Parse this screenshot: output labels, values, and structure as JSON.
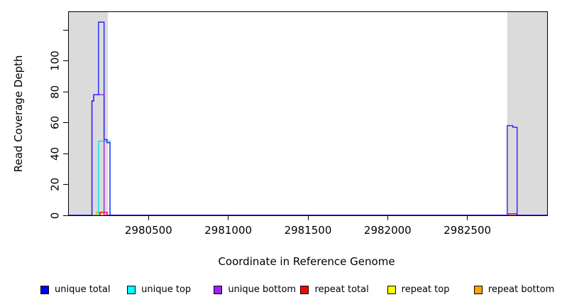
{
  "figure": {
    "x_axis_title": "Coordinate in Reference Genome",
    "y_axis_title": "Read Coverage Depth"
  },
  "legend": {
    "items": [
      {
        "label": "unique total",
        "color": "#0000FF"
      },
      {
        "label": "unique top",
        "color": "#00FFFF"
      },
      {
        "label": "unique bottom",
        "color": "#A020F0"
      },
      {
        "label": "repeat total",
        "color": "#FF0000"
      },
      {
        "label": "repeat top",
        "color": "#FFFF00"
      },
      {
        "label": "repeat bottom",
        "color": "#FFA500"
      }
    ]
  },
  "chart_data": {
    "type": "line",
    "subtype": "step",
    "title": "",
    "xlabel": "Coordinate in Reference Genome",
    "ylabel": "Read Coverage Depth",
    "xlim": [
      2980000,
      2983000
    ],
    "ylim": [
      0,
      131.5
    ],
    "grid": false,
    "legend_position": "bottom",
    "x_ticks": [
      {
        "value": 2980500,
        "label": "2980500"
      },
      {
        "value": 2981000,
        "label": "2981000"
      },
      {
        "value": 2981500,
        "label": "2981500"
      },
      {
        "value": 2982000,
        "label": "2982000"
      },
      {
        "value": 2982500,
        "label": "2982500"
      }
    ],
    "y_ticks": [
      {
        "value": 0,
        "label": "0"
      },
      {
        "value": 20,
        "label": "20"
      },
      {
        "value": 40,
        "label": "40"
      },
      {
        "value": 60,
        "label": "60"
      },
      {
        "value": 80,
        "label": "80"
      },
      {
        "value": 100,
        "label": "100"
      },
      {
        "value": 120,
        "label": ""
      }
    ],
    "shaded_regions": [
      {
        "x0": 2980000,
        "x1": 2980245,
        "color": "#DBDBDB"
      },
      {
        "x0": 2982750,
        "x1": 2983000,
        "color": "#DBDBDB"
      }
    ],
    "series": [
      {
        "name": "repeat top",
        "color": "#FFFF00",
        "step_points": [
          [
            2980000,
            0
          ],
          [
            2980153,
            1
          ],
          [
            2980184,
            0
          ],
          [
            2983000,
            0
          ]
        ]
      },
      {
        "name": "repeat bottom",
        "color": "#FFA500",
        "step_points": [
          [
            2980000,
            0
          ],
          [
            2980173,
            2
          ],
          [
            2980196,
            0
          ],
          [
            2983000,
            0
          ]
        ]
      },
      {
        "name": "repeat total",
        "color": "#FF0000",
        "step_points": [
          [
            2980000,
            0
          ],
          [
            2980196,
            2
          ],
          [
            2980240,
            0
          ],
          [
            2982758,
            1
          ],
          [
            2982808,
            0
          ],
          [
            2983000,
            0
          ]
        ]
      },
      {
        "name": "unique top",
        "color": "#00E5E5",
        "step_points": [
          [
            2980000,
            0
          ],
          [
            2980186,
            48
          ],
          [
            2980258,
            0
          ],
          [
            2983000,
            0
          ]
        ]
      },
      {
        "name": "unique bottom",
        "color": "#A020F0",
        "step_points": [
          [
            2980000,
            0
          ],
          [
            2980145,
            74
          ],
          [
            2980156,
            78
          ],
          [
            2980221,
            0
          ],
          [
            2983000,
            0
          ]
        ]
      },
      {
        "name": "unique total",
        "color": "#2222FF",
        "step_points": [
          [
            2980000,
            0
          ],
          [
            2980145,
            74
          ],
          [
            2980156,
            78
          ],
          [
            2980186,
            125
          ],
          [
            2980221,
            49
          ],
          [
            2980240,
            47
          ],
          [
            2980258,
            0
          ],
          [
            2982750,
            58
          ],
          [
            2982785,
            57
          ],
          [
            2982812,
            0
          ],
          [
            2983000,
            0
          ]
        ]
      }
    ]
  }
}
